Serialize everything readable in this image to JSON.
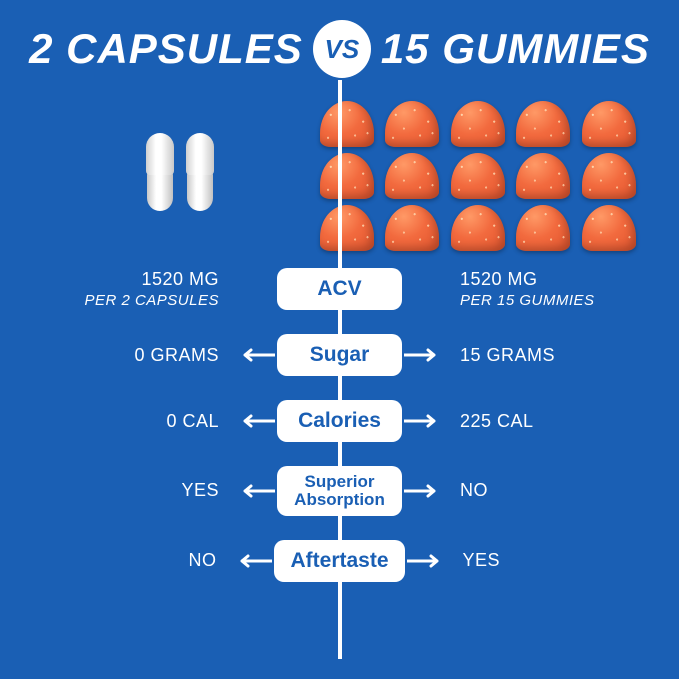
{
  "colors": {
    "background": "#1a5fb4",
    "pill_bg": "#ffffff",
    "pill_text": "#1a5fb4",
    "text": "#ffffff",
    "gummy_light": "#ff9966",
    "gummy_mid": "#f26a3e",
    "gummy_dark": "#e0542e"
  },
  "header": {
    "left": "2 CAPSULES",
    "vs": "VS",
    "right": "15 GUMMIES"
  },
  "products": {
    "capsule_count": 2,
    "gummy_count": 15,
    "gummy_grid": {
      "cols": 5,
      "rows": 3
    }
  },
  "rows": [
    {
      "label": "ACV",
      "left_value": "1520 MG",
      "left_sub": "PER 2 CAPSULES",
      "right_value": "1520 MG",
      "right_sub": "PER 15 GUMMIES",
      "arrows": false
    },
    {
      "label": "Sugar",
      "left_value": "0 GRAMS",
      "right_value": "15 GRAMS",
      "arrows": true
    },
    {
      "label": "Calories",
      "left_value": "0 CAL",
      "right_value": "225 CAL",
      "arrows": true
    },
    {
      "label": "Superior Absorption",
      "small": true,
      "left_value": "YES",
      "right_value": "NO",
      "arrows": true
    },
    {
      "label": "Aftertaste",
      "left_value": "NO",
      "right_value": "YES",
      "arrows": true
    }
  ]
}
